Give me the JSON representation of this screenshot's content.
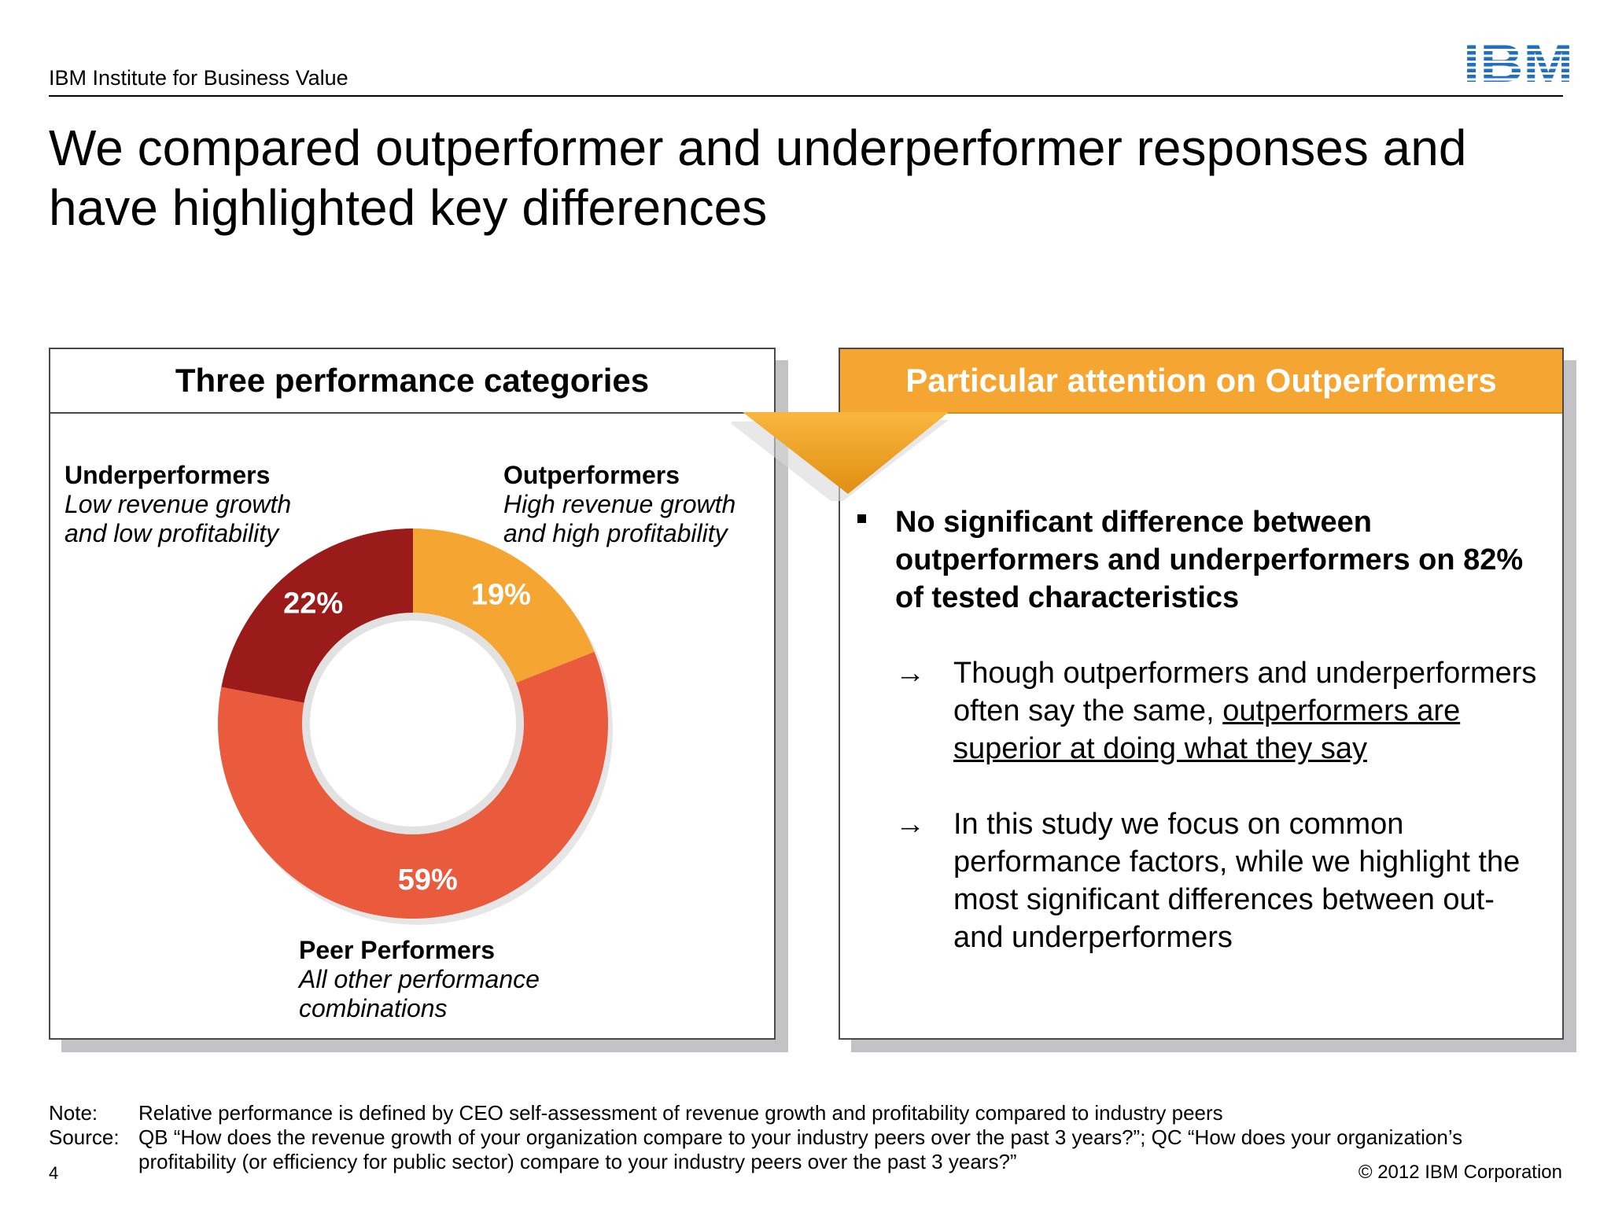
{
  "header": {
    "org": "IBM Institute for Business Value",
    "logo_text": "IBM"
  },
  "title": "We compared outperformer and underperformer responses and have highlighted key differences",
  "left_panel": {
    "heading": "Three performance categories",
    "categories": [
      {
        "name": "Underperformers",
        "desc": "Low revenue growth and low profitability"
      },
      {
        "name": "Outperformers",
        "desc": "High revenue growth and high profitability"
      },
      {
        "name": "Peer Performers",
        "desc": "All other performance combinations"
      }
    ]
  },
  "chart_data": {
    "type": "pie",
    "categories": [
      "Outperformers",
      "Peer Performers",
      "Underperformers"
    ],
    "values": [
      19,
      59,
      22
    ],
    "labels": [
      "19%",
      "59%",
      "22%"
    ],
    "colors": [
      "#f5a532",
      "#ea5a3c",
      "#9b1a1a"
    ],
    "title": ""
  },
  "right_panel": {
    "heading": "Particular attention on Outperformers",
    "bullet": "No significant difference between outperformers and underperformers on 82% of tested characteristics",
    "arrow": "→",
    "sub1_part1": "Though outperformers and underperformers often say the same, ",
    "sub1_underlined": "outperformers are superior at doing what they say",
    "sub2": "In this study we focus on common performance factors, while we highlight the most significant differences between out- and underperformers"
  },
  "footer": {
    "note_label": "Note:",
    "note_text": "Relative performance is defined by CEO self-assessment of revenue growth and profitability compared to industry peers",
    "source_label": "Source:",
    "source_text": "QB “How does the revenue growth of your organization compare to your industry peers over the past 3 years?”; QC “How does your organization’s profitability (or efficiency for public sector) compare to your industry peers over the past 3 years?”",
    "page": "4",
    "copyright": "© 2012 IBM Corporation"
  },
  "colors": {
    "orange": "#f5a532",
    "ibm_blue": "#1f70c1"
  }
}
